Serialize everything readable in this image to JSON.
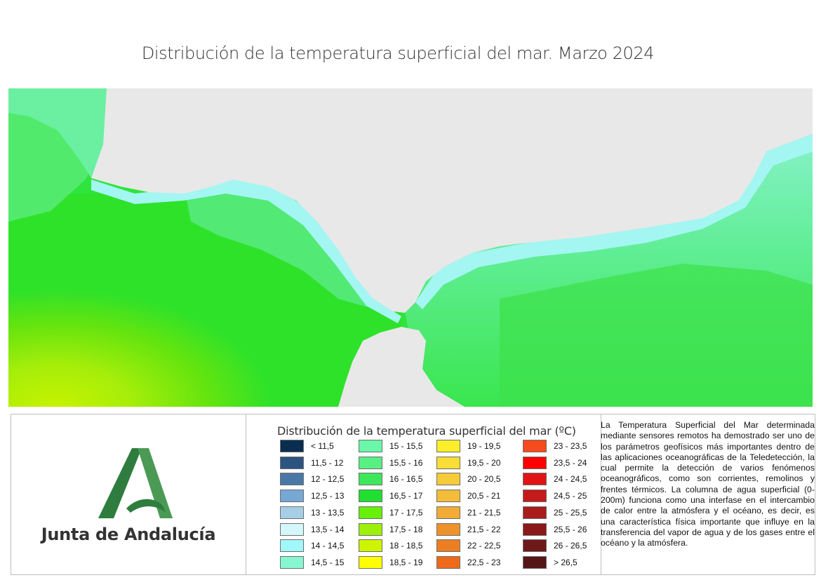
{
  "title": "Distribución de la temperatura superficial del mar. Marzo 2024",
  "logo": {
    "text": "Junta de Andalucía",
    "colors": {
      "primary": "#2e7d3f",
      "light": "#4aa25a"
    }
  },
  "map": {
    "land_color": "#e8e8e8"
  },
  "legend": {
    "title": "Distribución de la temperatura superficial del mar (ºC)",
    "items": [
      {
        "label": "< 11,5",
        "color": "#0a2e4f"
      },
      {
        "label": "11,5 - 12",
        "color": "#2c5480"
      },
      {
        "label": "12 - 12,5",
        "color": "#4a78a6"
      },
      {
        "label": "12,5 - 13",
        "color": "#77a7d3"
      },
      {
        "label": "13 - 13,5",
        "color": "#a6cfe6"
      },
      {
        "label": "13,5 - 14",
        "color": "#d3f7fb"
      },
      {
        "label": "14 - 14,5",
        "color": "#a2f7fb"
      },
      {
        "label": "14,5 - 15",
        "color": "#86f7d0"
      },
      {
        "label": "15 - 15,5",
        "color": "#6af7a8"
      },
      {
        "label": "15,5 - 16",
        "color": "#58f082"
      },
      {
        "label": "16 - 16,5",
        "color": "#3ce85a"
      },
      {
        "label": "16,5 - 17",
        "color": "#1fe030"
      },
      {
        "label": "17 - 17,5",
        "color": "#66f00a"
      },
      {
        "label": "17,5 - 18",
        "color": "#9cf00a"
      },
      {
        "label": "18 - 18,5",
        "color": "#cef500"
      },
      {
        "label": "18,5 - 19",
        "color": "#ffff00"
      },
      {
        "label": "19 - 19,5",
        "color": "#fbee2a"
      },
      {
        "label": "19,5 - 20",
        "color": "#f8de35"
      },
      {
        "label": "20 - 20,5",
        "color": "#f5cb38"
      },
      {
        "label": "20,5 - 21",
        "color": "#f3bc3a"
      },
      {
        "label": "21 - 21,5",
        "color": "#f2ab36"
      },
      {
        "label": "21,5 - 22",
        "color": "#ee922c"
      },
      {
        "label": "22 - 22,5",
        "color": "#ec7f24"
      },
      {
        "label": "22,5 - 23",
        "color": "#ee6a1a"
      },
      {
        "label": "23 - 23,5",
        "color": "#f64b1c"
      },
      {
        "label": "23,5 - 24",
        "color": "#ff0000"
      },
      {
        "label": "24 - 24,5",
        "color": "#e01414"
      },
      {
        "label": "24,5 - 25",
        "color": "#c51a1a"
      },
      {
        "label": "25 - 25,5",
        "color": "#a81c1c"
      },
      {
        "label": "25,5 - 26",
        "color": "#8a1a1a"
      },
      {
        "label": "26 - 26,5",
        "color": "#6e1a1a"
      },
      {
        "label": "> 26,5",
        "color": "#551616"
      }
    ]
  },
  "description": "La Temperatura Superficial del Mar determinada mediante sensores remotos ha demostrado ser uno de los parámetros geofísicos más importantes dentro de las aplicaciones oceanográficas de la Teledetección, la cual permite la detección de varios fenómenos oceanográficos, como son corrientes, remolinos y frentes térmicos. La columna de agua superficial (0-200m) funciona como una interfase en el intercambio de calor entre la atmósfera y el océano, es decir, es una característica física importante que influye en la transferencia del vapor de agua y de los gases entre el océano y la atmósfera."
}
